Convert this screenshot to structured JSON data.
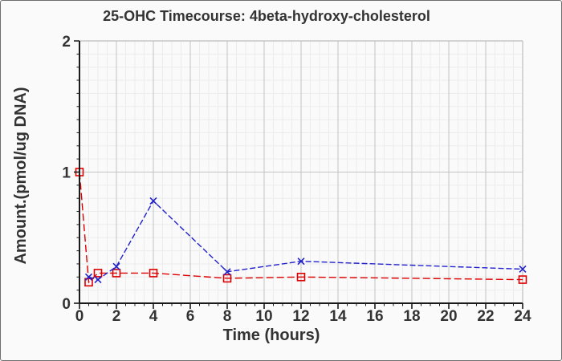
{
  "figure": {
    "title": "25-OHC Timecourse: 4beta-hydroxy-cholesterol"
  },
  "chart_data": {
    "type": "line",
    "title": "25-OHC Timecourse: 4beta-hydroxy-cholesterol",
    "xlabel": "Time (hours)",
    "ylabel": "Amount.(pmol/ug DNA)",
    "xlim": [
      0,
      24
    ],
    "ylim": [
      0,
      2
    ],
    "x_major_ticks": [
      0,
      2,
      4,
      6,
      8,
      10,
      12,
      14,
      16,
      18,
      20,
      22,
      24
    ],
    "y_major_ticks": [
      0,
      1,
      2
    ],
    "x_minor_step": 0.5,
    "y_minor_step": 0.1,
    "grid": true,
    "legend_position": "none",
    "series": [
      {
        "name": "red-open-square-series",
        "color": "#dd0000",
        "marker": "open-square",
        "line_style": "dashed",
        "x": [
          0,
          0.5,
          1,
          2,
          4,
          8,
          12,
          24
        ],
        "y": [
          1.0,
          0.16,
          0.23,
          0.23,
          0.23,
          0.19,
          0.2,
          0.18
        ]
      },
      {
        "name": "blue-x-series",
        "color": "#2222cc",
        "marker": "x",
        "line_style": "dashed",
        "x": [
          0.5,
          1,
          2,
          4,
          8,
          12,
          24
        ],
        "y": [
          0.2,
          0.18,
          0.28,
          0.78,
          0.24,
          0.32,
          0.26
        ]
      }
    ],
    "colors": {
      "background": "#fafafa",
      "grid_minor": "#ececec",
      "grid_major": "#c2c2c2",
      "frame": "#bdbdbd",
      "axis": "#1a1a1a",
      "text": "#333333",
      "border": "#6e6e6e"
    }
  }
}
